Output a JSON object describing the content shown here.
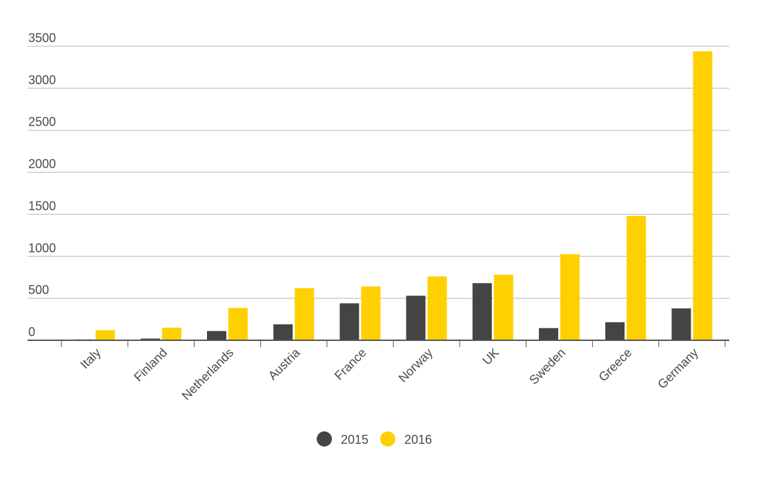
{
  "chart_data": {
    "type": "bar",
    "title": "",
    "xlabel": "",
    "ylabel": "",
    "categories": [
      "Italy",
      "Finland",
      "Netherlands",
      "Austria",
      "France",
      "Norway",
      "UK",
      "Sweden",
      "Greece",
      "Germany"
    ],
    "series": [
      {
        "name": "2015",
        "color": "#444444",
        "values": [
          10,
          20,
          110,
          190,
          440,
          530,
          680,
          145,
          215,
          380
        ]
      },
      {
        "name": "2016",
        "color": "#ffd000",
        "values": [
          120,
          150,
          385,
          620,
          640,
          760,
          780,
          1025,
          1480,
          3440
        ]
      }
    ],
    "ylim": [
      0,
      3500
    ],
    "yticks": [
      0,
      500,
      1000,
      1500,
      2000,
      2500,
      3000,
      3500
    ],
    "grid": true,
    "legend": "bottom-center"
  }
}
